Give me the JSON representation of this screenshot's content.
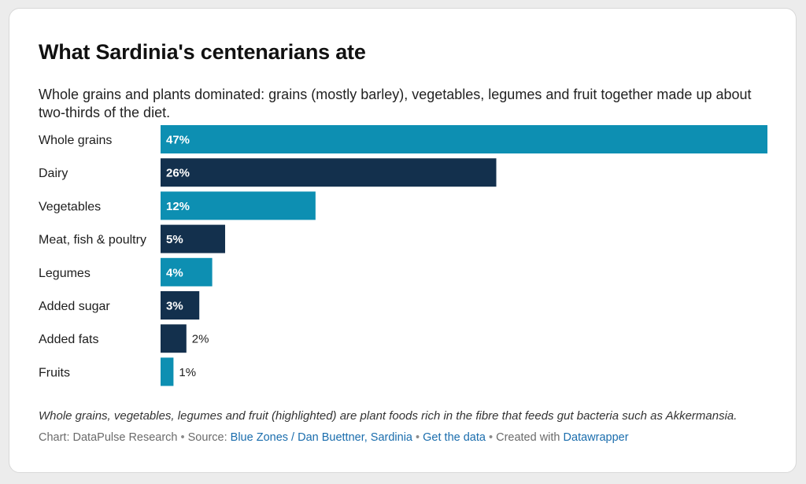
{
  "title": "What Sardinia's centenarians ate",
  "subtitle": "Whole grains and plants dominated: grains (mostly barley), vegetables, legumes and fruit together made up about two-thirds of the diet.",
  "notes": "Whole grains, vegetables, legumes and fruit (highlighted) are plant foods rich in the fibre that feeds gut bacteria such as Akkermansia.",
  "footer": {
    "chart_prefix": "Chart: DataPulse Research",
    "separator": "•",
    "source_prefix": "Source:",
    "source_link": "Blue Zones / Dan Buettner, Sardinia",
    "data_link": "Get the data",
    "created_prefix": "Created with",
    "created_link": "Datawrapper"
  },
  "colors": {
    "highlight": "#0d8fb2",
    "base": "#13304d",
    "value_inside": "#ffffff",
    "value_outside": "#222222"
  },
  "chart_data": {
    "type": "bar",
    "orientation": "horizontal",
    "categories": [
      "Whole grains",
      "Dairy",
      "Vegetables",
      "Meat, fish & poultry",
      "Legumes",
      "Added sugar",
      "Added fats",
      "Fruits"
    ],
    "values": [
      47,
      26,
      12,
      5,
      4,
      3,
      2,
      1
    ],
    "value_labels": [
      "47%",
      "26%",
      "12%",
      "5%",
      "4%",
      "3%",
      "2%",
      "1%"
    ],
    "highlighted": [
      true,
      false,
      true,
      false,
      true,
      false,
      false,
      true
    ],
    "xlim": [
      0,
      47
    ],
    "unit": "%"
  }
}
